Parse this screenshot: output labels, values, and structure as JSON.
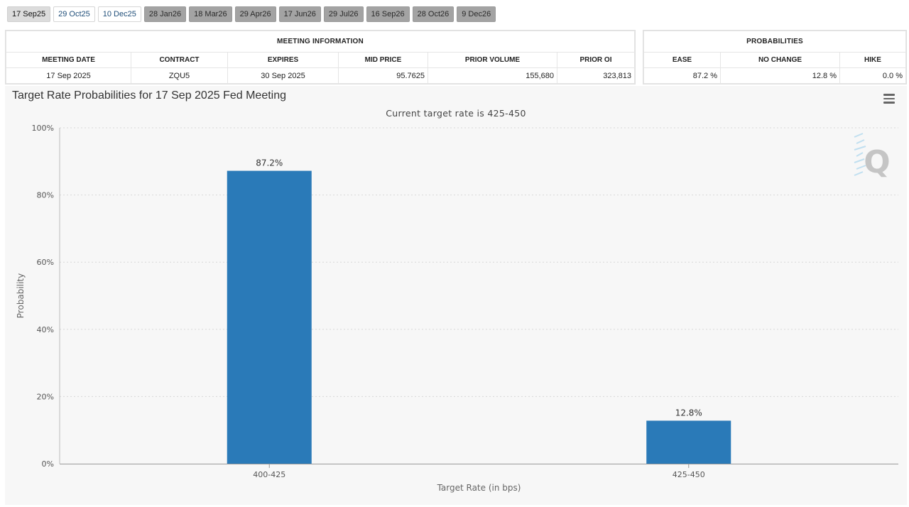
{
  "tabs": [
    {
      "label": "17 Sep25",
      "state": "active"
    },
    {
      "label": "29 Oct25",
      "state": "light"
    },
    {
      "label": "10 Dec25",
      "state": "light"
    },
    {
      "label": "28 Jan26",
      "state": "dark"
    },
    {
      "label": "18 Mar26",
      "state": "dark"
    },
    {
      "label": "29 Apr26",
      "state": "dark"
    },
    {
      "label": "17 Jun26",
      "state": "dark"
    },
    {
      "label": "29 Jul26",
      "state": "dark"
    },
    {
      "label": "16 Sep26",
      "state": "dark"
    },
    {
      "label": "28 Oct26",
      "state": "dark"
    },
    {
      "label": "9 Dec26",
      "state": "dark"
    }
  ],
  "meeting_info": {
    "title": "MEETING INFORMATION",
    "headers": {
      "meeting_date": "MEETING DATE",
      "contract": "CONTRACT",
      "expires": "EXPIRES",
      "mid_price": "MID PRICE",
      "prior_volume": "PRIOR VOLUME",
      "prior_oi": "PRIOR OI"
    },
    "row": {
      "meeting_date": "17 Sep 2025",
      "contract": "ZQU5",
      "expires": "30 Sep 2025",
      "mid_price": "95.7625",
      "prior_volume": "155,680",
      "prior_oi": "323,813"
    }
  },
  "probabilities": {
    "title": "PROBABILITIES",
    "headers": {
      "ease": "EASE",
      "no_change": "NO CHANGE",
      "hike": "HIKE"
    },
    "row": {
      "ease": "87.2 %",
      "no_change": "12.8 %",
      "hike": "0.0 %"
    }
  },
  "chart": {
    "title": "Target Rate Probabilities for 17 Sep 2025 Fed Meeting",
    "subtitle": "Current target rate is 425-450",
    "menu_icon": "hamburger-menu-icon",
    "watermark_icon": "q-logo-icon",
    "bar_color": "#2a7ab8"
  },
  "chart_data": {
    "type": "bar",
    "categories": [
      "400-425",
      "425-450"
    ],
    "values": [
      87.2,
      12.8
    ],
    "data_labels": [
      "87.2%",
      "12.8%"
    ],
    "title": "Target Rate Probabilities for 17 Sep 2025 Fed Meeting",
    "subtitle": "Current target rate is 425-450",
    "xlabel": "Target Rate (in bps)",
    "ylabel": "Probability",
    "ylim": [
      0,
      100
    ],
    "yticks": [
      "0%",
      "20%",
      "40%",
      "60%",
      "80%",
      "100%"
    ],
    "grid": true
  }
}
